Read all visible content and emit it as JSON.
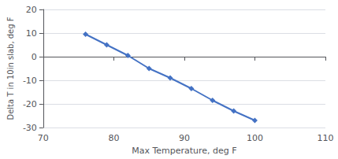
{
  "chart_data": {
    "type": "line",
    "x": [
      76,
      79,
      82,
      85,
      88,
      91,
      94,
      97,
      100
    ],
    "values": [
      9.5,
      5.0,
      0.5,
      -5.0,
      -9.0,
      -13.5,
      -18.5,
      -23.0,
      -27.0
    ],
    "color": "#4472C4",
    "marker": "diamond",
    "xlabel": "Max Temperature, deg F",
    "ylabel": "Delta T in 10in slab, deg F",
    "xlim": [
      70,
      110
    ],
    "ylim": [
      -30,
      20
    ],
    "xticks": [
      70,
      80,
      90,
      100,
      110
    ],
    "yticks": [
      -30,
      -20,
      -10,
      0,
      10,
      20
    ],
    "grid": true
  }
}
